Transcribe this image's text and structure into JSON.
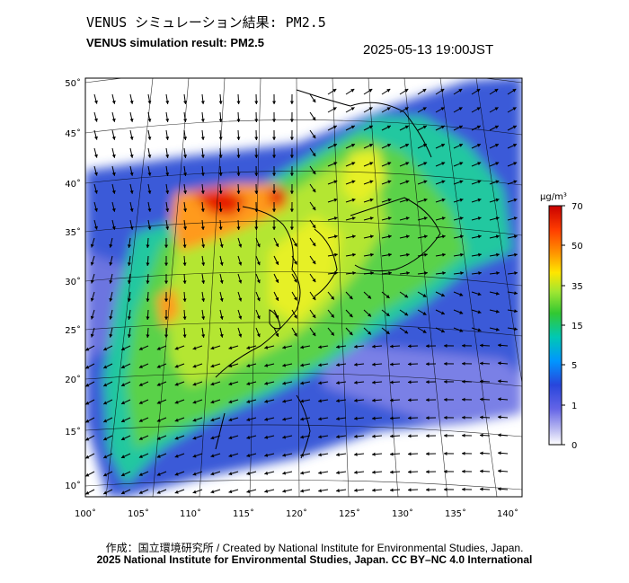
{
  "title": {
    "jp": "VENUS シミュレーション結果: PM2.5",
    "en": "VENUS simulation result: PM2.5",
    "timestamp": "2025-05-13 19:00JST"
  },
  "map": {
    "lon_ticks": [
      "100˚",
      "105˚",
      "110˚",
      "115˚",
      "120˚",
      "125˚",
      "130˚",
      "135˚",
      "140˚"
    ],
    "lat_ticks": [
      "50˚",
      "45˚",
      "40˚",
      "35˚",
      "30˚",
      "25˚",
      "20˚",
      "15˚",
      "10˚"
    ]
  },
  "colorbar": {
    "unit": "µg/m³",
    "labels": [
      "70",
      "50",
      "35",
      "15",
      "5",
      "1",
      "0"
    ],
    "colors": [
      "#c80000",
      "#ff3c00",
      "#ff9600",
      "#ffe600",
      "#a0e632",
      "#32c832",
      "#00c8b4",
      "#0096ff",
      "#2846dc",
      "#6464e6",
      "#b4b4f0",
      "#ffffff"
    ]
  },
  "credits": {
    "line1": "作成：国立環境研究所 / Created by National Institute for Environmental Studies, Japan.",
    "line2": "2025 National Institute for Environmental Studies, Japan. CC BY–NC 4.0 International"
  }
}
